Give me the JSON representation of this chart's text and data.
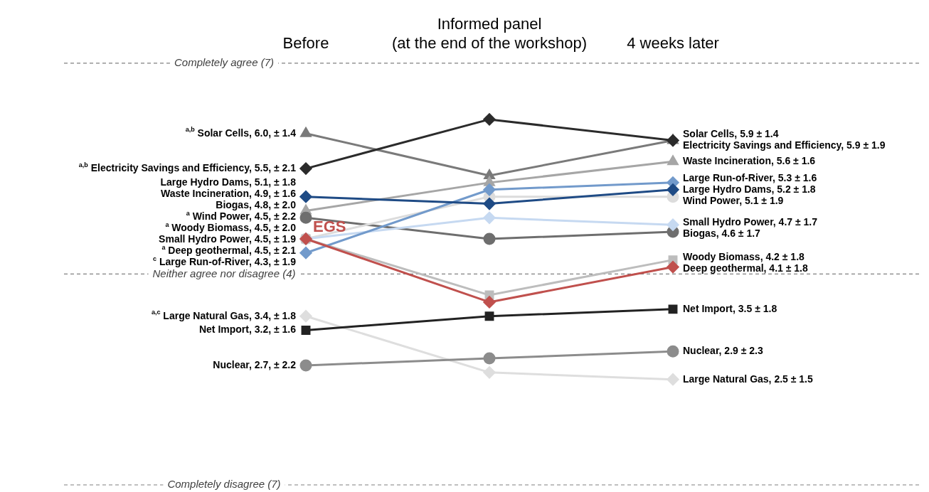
{
  "chart_data": {
    "type": "line",
    "categories": [
      "Before",
      "Informed panel\n(at the end of the workshop)",
      "4 weeks later"
    ],
    "ylim": [
      1,
      7
    ],
    "tick_labels": "x",
    "ref_lines": [
      {
        "axis": "y",
        "value": 7,
        "label": "Completely agree (7)",
        "color": "#808080",
        "line_style": "dashed"
      },
      {
        "axis": "y",
        "value": 4,
        "label": "Neither agree nor disagree (4)",
        "color": "#808080",
        "line_style": "dashed"
      },
      {
        "axis": "y",
        "value": 1,
        "label": "Completely disagree (7)",
        "color": "#808080",
        "line_style": "dashed"
      }
    ],
    "annotations": [
      {
        "text": "EGS",
        "x": "Before",
        "y": 4.5
      }
    ],
    "series": [
      {
        "color": "#7a7a7a",
        "marker": "triangle",
        "values": [
          6.0,
          5.4,
          5.9
        ],
        "value_labels": [
          "$^{a,b}$ Solar Cells, 6.0, ± 1.4",
          null,
          "Solar Cells, 5.9 ± 1.4"
        ]
      },
      {
        "color": "#2b2b2b",
        "marker": "diamond",
        "values": [
          5.5,
          6.2,
          5.9
        ],
        "value_labels": [
          "$^{a,b}$ Electricity Savings and Efficiency, 5.5, ± 2.1",
          null,
          "Electricity Savings and Efficiency, 5.9 ± 1.9"
        ]
      },
      {
        "color": "#a6a6a6",
        "marker": "triangle",
        "values": [
          4.9,
          5.3,
          5.6
        ],
        "value_labels": [
          "Waste Incineration, 4.9, ± 1.6",
          null,
          "Waste Incineration, 5.6 ± 1.6"
        ]
      },
      {
        "color": "#6e6e6e",
        "marker": "circle",
        "values": [
          4.8,
          4.5,
          4.6
        ],
        "value_labels": [
          "Biogas, 4.8, ± 2.0",
          null,
          "Biogas, 4.6 ± 1.7"
        ]
      },
      {
        "color": "#dcdcdc",
        "marker": "circle",
        "values": [
          4.5,
          5.1,
          5.1
        ],
        "value_labels": [
          "$^{a}$ Wind Power, 4.5, ± 2.2",
          null,
          "Wind Power, 5.1 ± 1.9"
        ]
      },
      {
        "color": "#bdbdbd",
        "marker": "square",
        "values": [
          4.5,
          3.7,
          4.2
        ],
        "value_labels": [
          "$^{a}$ Woody Biomass, 4.5, ± 2.0",
          null,
          "Woody Biomass, 4.2 ± 1.8"
        ]
      },
      {
        "color": "#dedede",
        "marker": "diamond",
        "values": [
          3.4,
          2.6,
          2.5
        ],
        "value_labels": [
          "$^{a,c}$ Large Natural Gas, 3.4, ± 1.8",
          null,
          "Large Natural Gas, 2.5 ± 1.5"
        ]
      },
      {
        "color": "#222222",
        "marker": "square",
        "values": [
          3.2,
          3.4,
          3.5
        ],
        "value_labels": [
          "Net Import, 3.2, ± 1.6",
          null,
          "Net Import, 3.5 ± 1.8"
        ]
      },
      {
        "color": "#8c8c8c",
        "marker": "circle",
        "values": [
          2.7,
          2.8,
          2.9
        ],
        "value_labels": [
          "Nuclear, 2.7, ± 2.2",
          null,
          "Nuclear, 2.9 ± 2.3"
        ]
      },
      {
        "color": "#c6d9f1",
        "marker": "diamond",
        "values": [
          4.5,
          4.8,
          4.7
        ],
        "value_labels": [
          "Small Hydro Power, 4.5, ± 1.9",
          null,
          "Small Hydro Power, 4.7 ± 1.7"
        ]
      },
      {
        "color": "#729acb",
        "marker": "diamond",
        "values": [
          4.3,
          5.2,
          5.3
        ],
        "value_labels": [
          "$^{c}$ Large Run-of-River, 4.3, ± 1.9",
          null,
          "Large Run-of-River, 5.3 ± 1.6"
        ]
      },
      {
        "color": "#1f4b85",
        "marker": "diamond",
        "values": [
          5.1,
          5.0,
          5.2
        ],
        "value_labels": [
          "Large Hydro Dams, 5.1, ± 1.8",
          null,
          "Large Hydro Dams, 5.2 ± 1.8"
        ]
      },
      {
        "color": "#c0504d",
        "marker": "diamond",
        "values": [
          4.5,
          3.6,
          4.1
        ],
        "value_labels": [
          "$^{a}$ Deep geothermal, 4.5, ± 2.1",
          null,
          "Deep geothermal, 4.1 ± 1.8"
        ]
      }
    ]
  }
}
